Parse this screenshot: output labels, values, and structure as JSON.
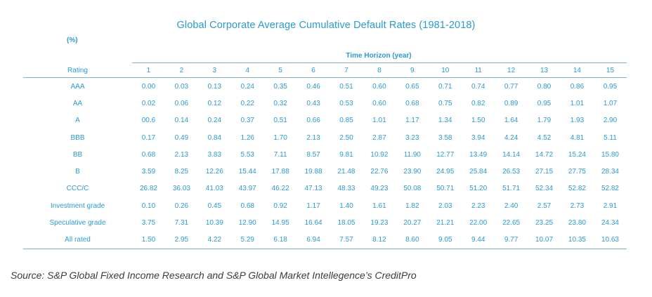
{
  "title": "Global Corporate Average Cumulative Default Rates (1981-2018)",
  "unit": "(%)",
  "horizon_label": "Time Horizon (year)",
  "rating_header": "Rating",
  "years": [
    "1",
    "2",
    "3",
    "4",
    "5",
    "6",
    "7",
    "8",
    "9",
    "10",
    "11",
    "12",
    "13",
    "14",
    "15"
  ],
  "rows": [
    {
      "rating": "AAA",
      "values": [
        "0.00",
        "0.03",
        "0.13",
        "0.24",
        "0.35",
        "0.46",
        "0.51",
        "0.60",
        "0.65",
        "0.71",
        "0.74",
        "0.77",
        "0.80",
        "0.86",
        "0.95"
      ]
    },
    {
      "rating": "AA",
      "values": [
        "0.02",
        "0.06",
        "0.12",
        "0.22",
        "0.32",
        "0.43",
        "0.53",
        "0.60",
        "0.68",
        "0.75",
        "0.82",
        "0.89",
        "0.95",
        "1.01",
        "1.07"
      ]
    },
    {
      "rating": "A",
      "values": [
        "00.6",
        "0.14",
        "0.24",
        "0.37",
        "0.51",
        "0.66",
        "0.85",
        "1.01",
        "1.17",
        "1.34",
        "1.50",
        "1.64",
        "1.79",
        "1.93",
        "2.90"
      ]
    },
    {
      "rating": "BBB",
      "values": [
        "0.17",
        "0.49",
        "0.84",
        "1.26",
        "1.70",
        "2.13",
        "2.50",
        "2.87",
        "3.23",
        "3.58",
        "3.94",
        "4.24",
        "4.52",
        "4.81",
        "5.11"
      ]
    },
    {
      "rating": "BB",
      "values": [
        "0.68",
        "2.13",
        "3.83",
        "5.53",
        "7.11",
        "8.57",
        "9.81",
        "10.92",
        "11.90",
        "12.77",
        "13.49",
        "14.14",
        "14.72",
        "15.24",
        "15.80"
      ]
    },
    {
      "rating": "B",
      "values": [
        "3.59",
        "8.25",
        "12.26",
        "15.44",
        "17.88",
        "19.88",
        "21.48",
        "22.76",
        "23.90",
        "24.95",
        "25.84",
        "26.53",
        "27.15",
        "27.75",
        "28.34"
      ]
    },
    {
      "rating": "CCC/C",
      "values": [
        "26.82",
        "36.03",
        "41.03",
        "43.97",
        "46.22",
        "47.13",
        "48.33",
        "49.23",
        "50.08",
        "50.71",
        "51.20",
        "51.71",
        "52.34",
        "52.82",
        "52.82"
      ]
    },
    {
      "rating": "Investment grade",
      "values": [
        "0.10",
        "0.26",
        "0.45",
        "0.68",
        "0.92",
        "1.17",
        "1.40",
        "1.61",
        "1.82",
        "2.03",
        "2.23",
        "2.40",
        "2.57",
        "2.73",
        "2.91"
      ]
    },
    {
      "rating": "Speculative grade",
      "values": [
        "3.75",
        "7.31",
        "10.39",
        "12.90",
        "14.95",
        "16.64",
        "18.05",
        "19.23",
        "20.27",
        "21.21",
        "22.00",
        "22.65",
        "23.25",
        "23.80",
        "24.34"
      ]
    },
    {
      "rating": "All rated",
      "values": [
        "1.50",
        "2.95",
        "4.22",
        "5.29",
        "6.18",
        "6.94",
        "7.57",
        "8.12",
        "8.60",
        "9.05",
        "9.44",
        "9.77",
        "10.07",
        "10.35",
        "10.63"
      ]
    }
  ],
  "source": "Source: S&P Global Fixed Income Research and S&P Global Market Intellegence’s CreditPro",
  "colors": {
    "accent": "#2a9bd3",
    "rule": "#8aaec4",
    "source_text": "#3b3b3b"
  }
}
